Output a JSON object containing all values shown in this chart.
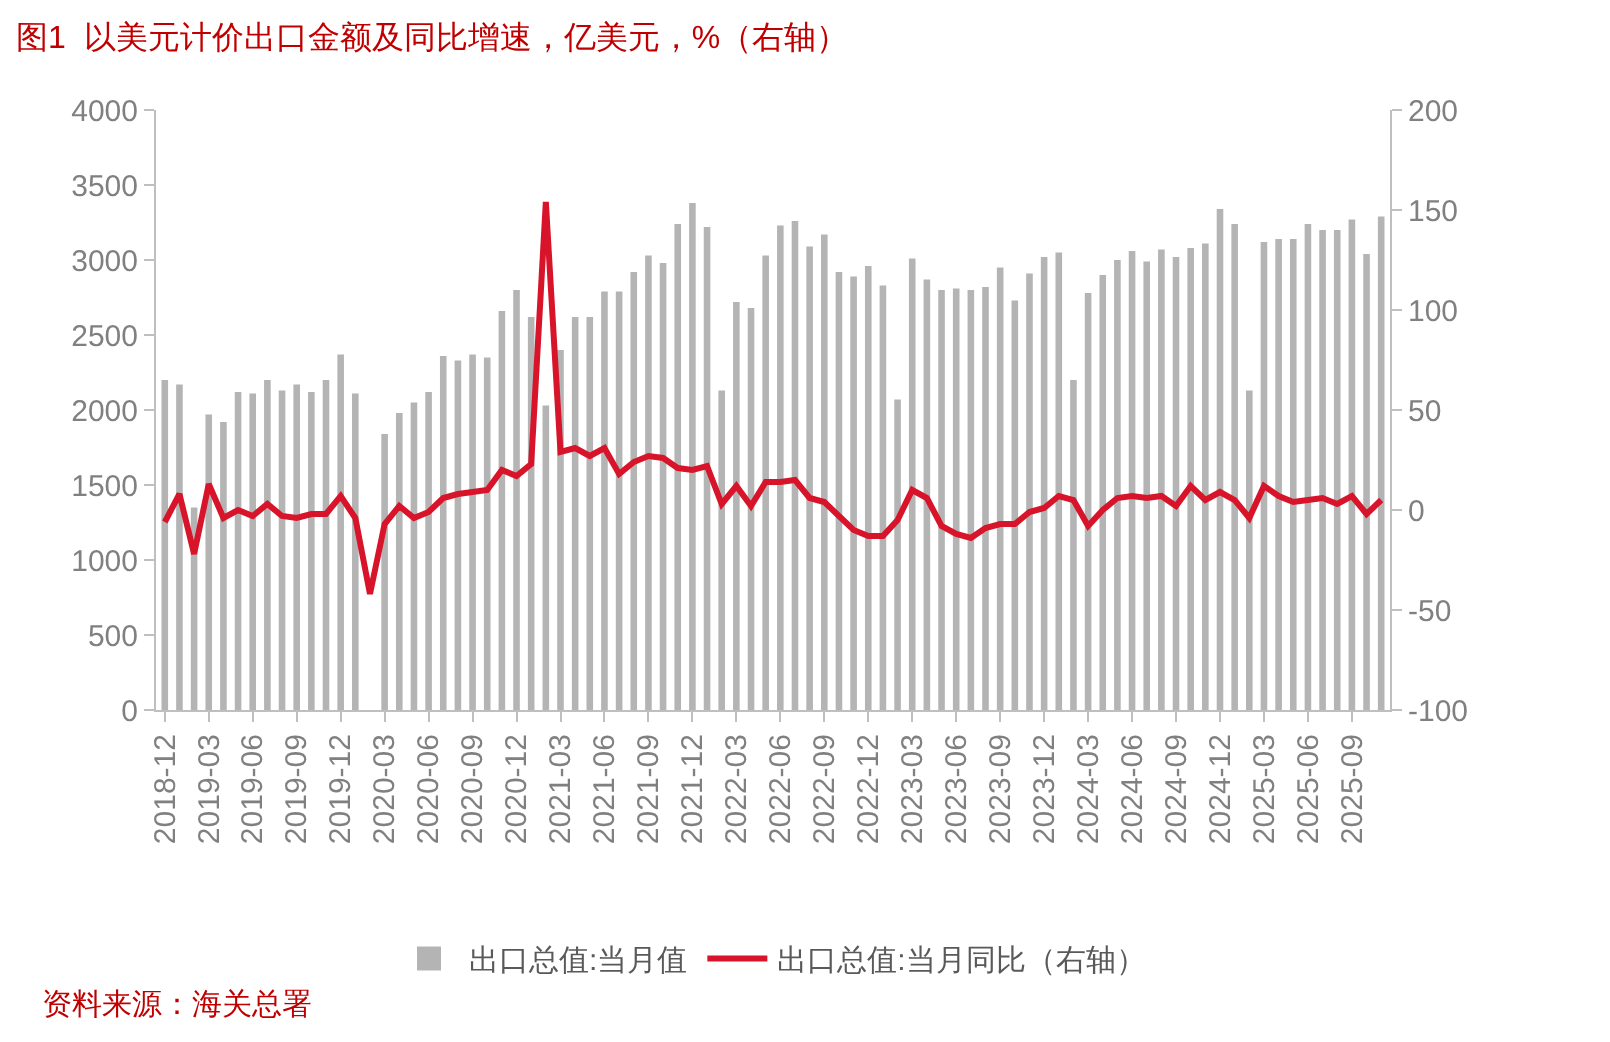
{
  "chart_data": {
    "type": "bar",
    "title": "图1  以美元计价出口金额及同比增速，亿美元，%（右轴）",
    "categories": [
      "2018-12",
      null,
      null,
      "2019-03",
      null,
      null,
      "2019-06",
      null,
      null,
      "2019-09",
      null,
      null,
      "2019-12",
      null,
      null,
      "2020-03",
      null,
      null,
      "2020-06",
      null,
      null,
      "2020-09",
      null,
      null,
      "2020-12",
      null,
      null,
      "2021-03",
      null,
      null,
      "2021-06",
      null,
      null,
      "2021-09",
      null,
      null,
      "2021-12",
      null,
      null,
      "2022-03",
      null,
      null,
      "2022-06",
      null,
      null,
      "2022-09",
      null,
      null,
      "2022-12",
      null,
      null,
      "2023-03",
      null,
      null,
      "2023-06",
      null,
      null,
      "2023-09",
      null,
      null,
      "2023-12",
      null,
      null,
      "2024-03",
      null,
      null,
      "2024-06",
      null,
      null,
      "2024-09",
      null,
      null,
      "2024-12",
      null,
      null,
      "2025-03",
      null,
      null,
      "2025-06",
      null,
      null,
      "2025-09",
      null,
      null
    ],
    "series": [
      {
        "name": "出口总值:当月值",
        "color": "#b4b4b4",
        "values": [
          2200,
          2170,
          1350,
          1970,
          1920,
          2120,
          2110,
          2200,
          2130,
          2170,
          2120,
          2200,
          2370,
          2110,
          null,
          1840,
          1980,
          2050,
          2120,
          2360,
          2330,
          2370,
          2350,
          2660,
          2800,
          2620,
          2030,
          2400,
          2620,
          2620,
          2790,
          2790,
          2920,
          3030,
          2980,
          3240,
          3380,
          3220,
          2130,
          2720,
          2680,
          3030,
          3230,
          3260,
          3090,
          3170,
          2920,
          2890,
          2960,
          2830,
          2070,
          3010,
          2870,
          2800,
          2810,
          2800,
          2820,
          2950,
          2730,
          2910,
          3020,
          3050,
          2200,
          2780,
          2900,
          3000,
          3060,
          2990,
          3070,
          3020,
          3080,
          3110,
          3340,
          3240,
          2130,
          3120,
          3140,
          3140,
          3240,
          3200,
          3200,
          3270,
          3040,
          3290
        ]
      },
      {
        "name": "出口总值:当月同比（右轴）",
        "type": "line",
        "axis": "y2",
        "color": "#d7142a",
        "values": [
          -6,
          8,
          -22,
          13,
          -4,
          0,
          -3,
          3,
          -3,
          -4,
          -2,
          -2,
          7,
          -4,
          -42,
          -7,
          2,
          -4,
          -1,
          6,
          8,
          9,
          10,
          20,
          17,
          23,
          154,
          29,
          31,
          27,
          31,
          18,
          24,
          27,
          26,
          21,
          20,
          22,
          3,
          12,
          2,
          14,
          14,
          15,
          6,
          4,
          -3,
          -10,
          -13,
          -13,
          -5,
          10,
          6,
          -8,
          -12,
          -14,
          -9,
          -7,
          -7,
          -1,
          1,
          7,
          5,
          -8,
          0,
          6,
          7,
          6,
          7,
          2,
          12,
          5,
          9,
          5,
          -4,
          12,
          7,
          4,
          5,
          6,
          3,
          7,
          -2,
          5
        ]
      }
    ],
    "ylim": [
      0,
      4000
    ],
    "yticks": [
      0,
      500,
      1000,
      1500,
      2000,
      2500,
      3000,
      3500,
      4000
    ],
    "y2lim": [
      -100,
      200
    ],
    "y2ticks": [
      -100,
      -50,
      0,
      50,
      100,
      150,
      200
    ],
    "legend": "bottom",
    "marker": "none",
    "line_style": "solid",
    "annotations": [
      "资料来源：海关总署"
    ]
  }
}
